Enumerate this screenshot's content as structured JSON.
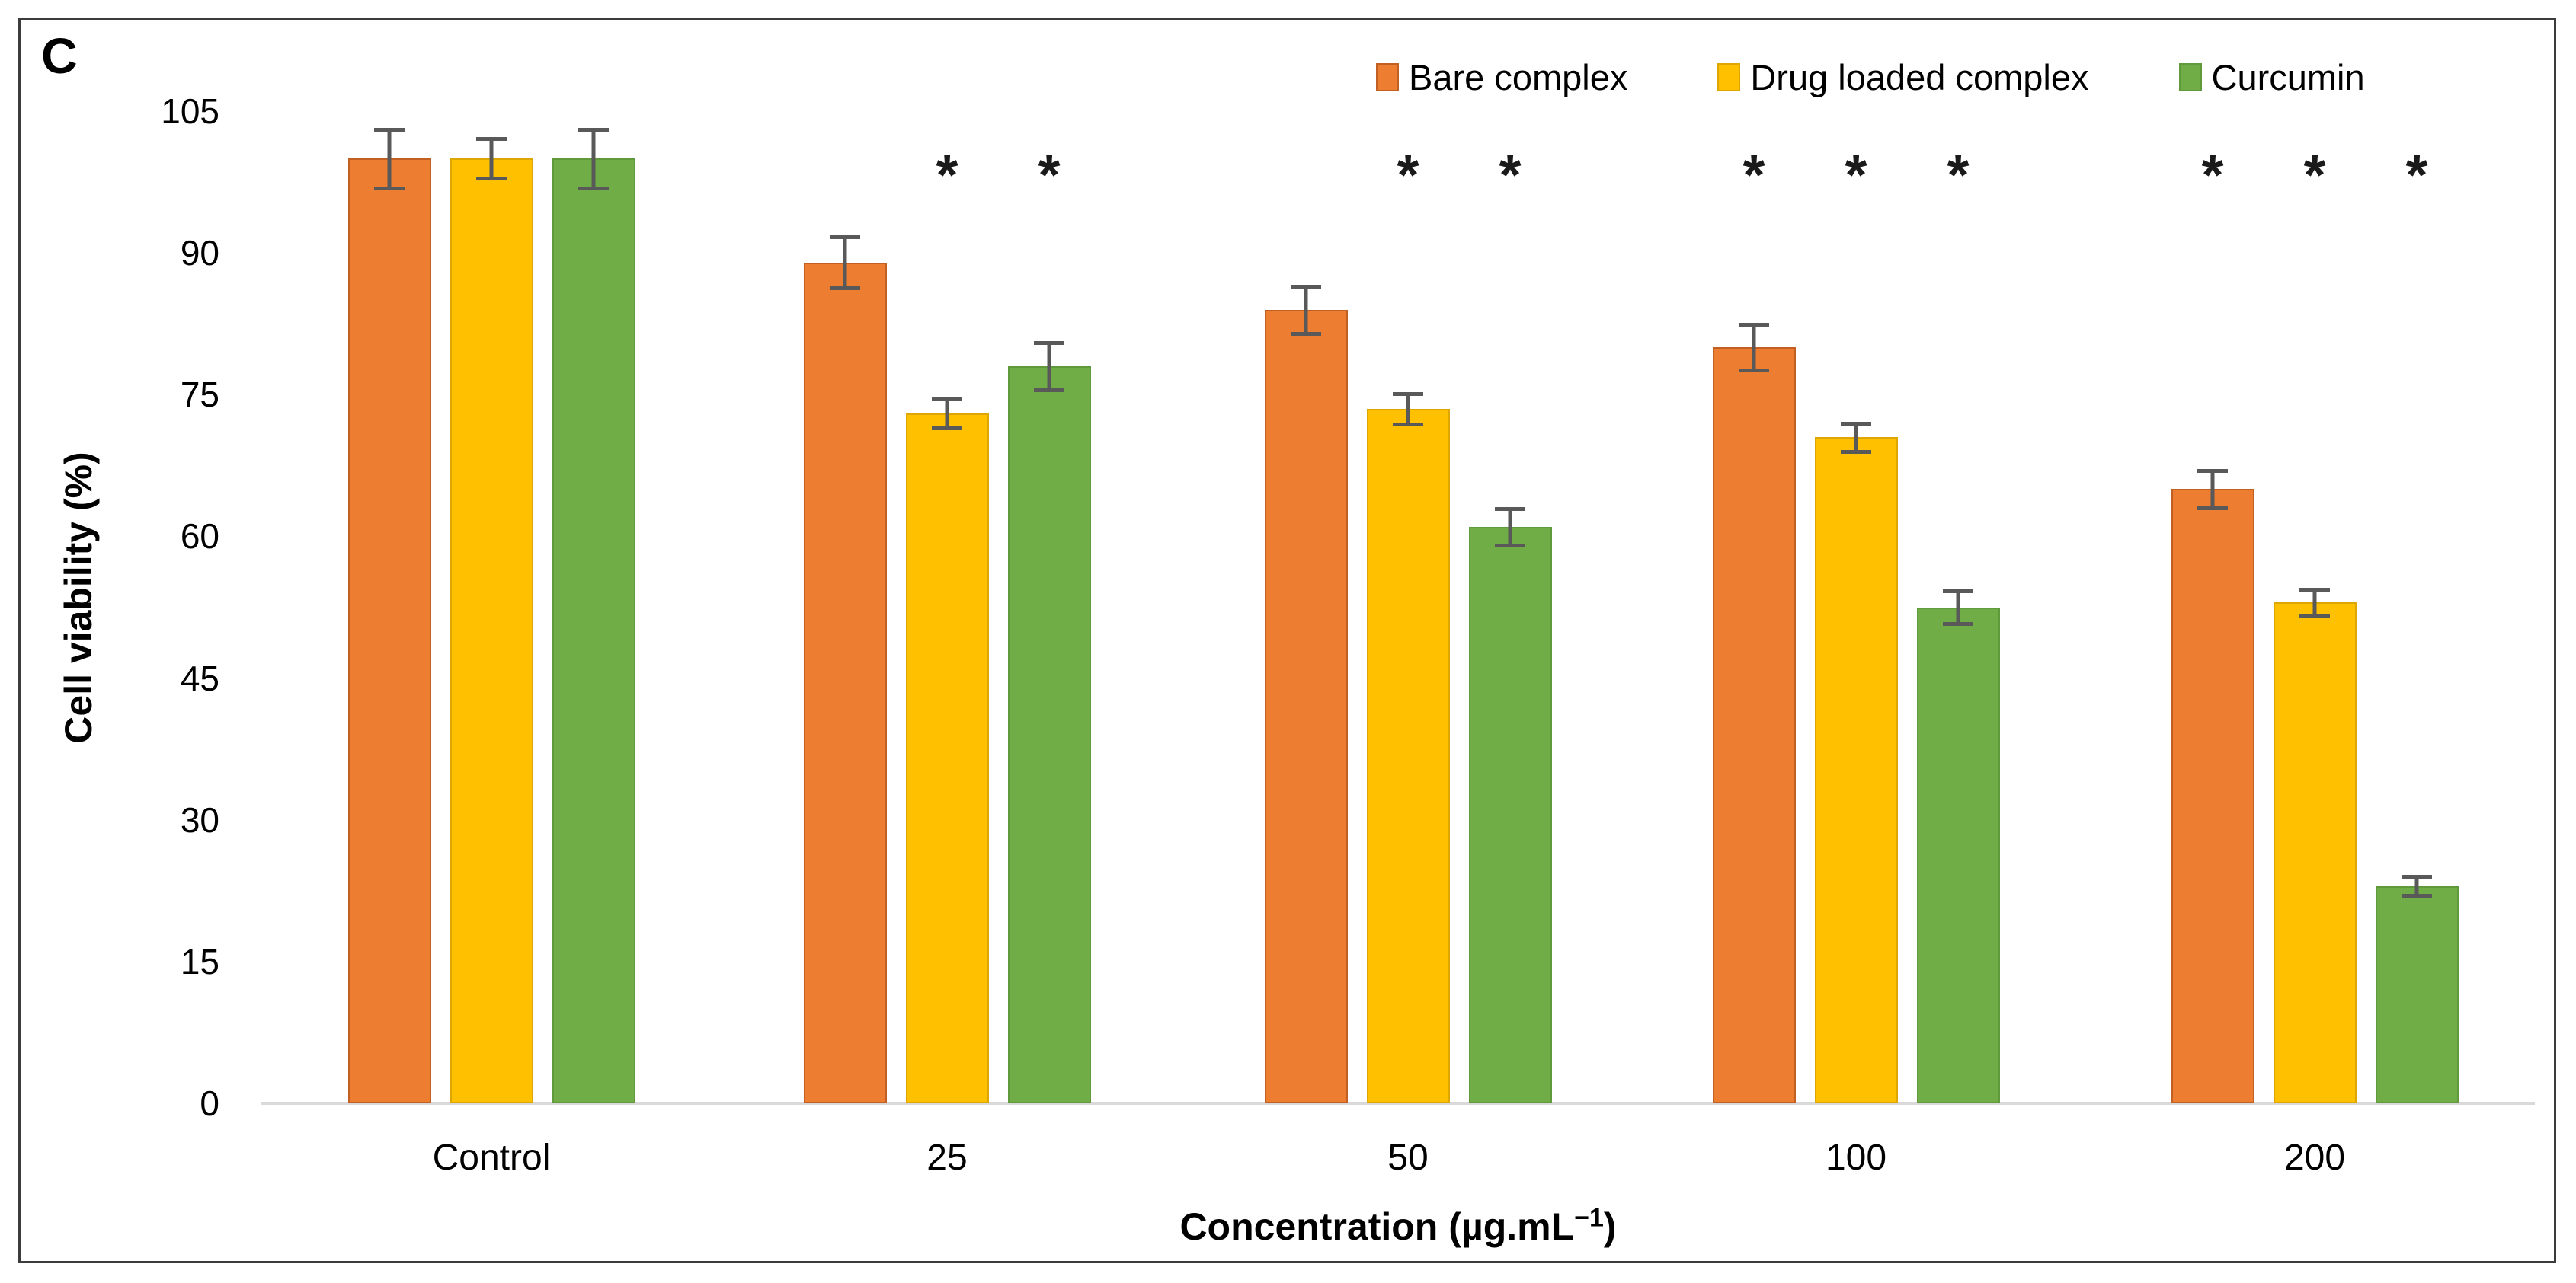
{
  "panel_label": "C",
  "chart_data": {
    "type": "bar",
    "title": "",
    "categories": [
      "Control",
      "25",
      "50",
      "100",
      "200"
    ],
    "series": [
      {
        "name": "Bare complex",
        "color": "#ED7D31",
        "border_color": "#C25F22",
        "values": [
          100,
          89,
          84,
          80,
          65
        ],
        "errors": [
          3.1,
          2.7,
          2.5,
          2.4,
          2.0
        ],
        "significant": [
          false,
          false,
          false,
          true,
          true
        ]
      },
      {
        "name": "Drug loaded complex",
        "color": "#FFC000",
        "border_color": "#DDA600",
        "values": [
          100,
          73,
          73.5,
          70.5,
          53
        ],
        "errors": [
          2.1,
          1.5,
          1.6,
          1.5,
          1.4
        ],
        "significant": [
          false,
          true,
          true,
          true,
          true
        ]
      },
      {
        "name": "Curcumin",
        "color": "#70AD47",
        "border_color": "#619A3C",
        "values": [
          100,
          78,
          61,
          52.5,
          23
        ],
        "errors": [
          3.1,
          2.5,
          1.9,
          1.7,
          1.0
        ],
        "significant": [
          false,
          true,
          true,
          true,
          true
        ]
      }
    ],
    "xlabel": "Concentration (µg.mL⁻¹)",
    "xlabel_parts": {
      "prefix": "Concentration (µg.mL",
      "sup": "−1",
      "suffix": ")"
    },
    "ylabel": "Cell viability (%)",
    "y_ticks": [
      0,
      15,
      30,
      45,
      60,
      75,
      90,
      105
    ],
    "ylim": [
      0,
      112
    ],
    "grid": false,
    "legend_position": "top-right",
    "significance_marker": "*",
    "error_bar_color": "#595959",
    "axis_line_color": "#D9D9D9"
  }
}
